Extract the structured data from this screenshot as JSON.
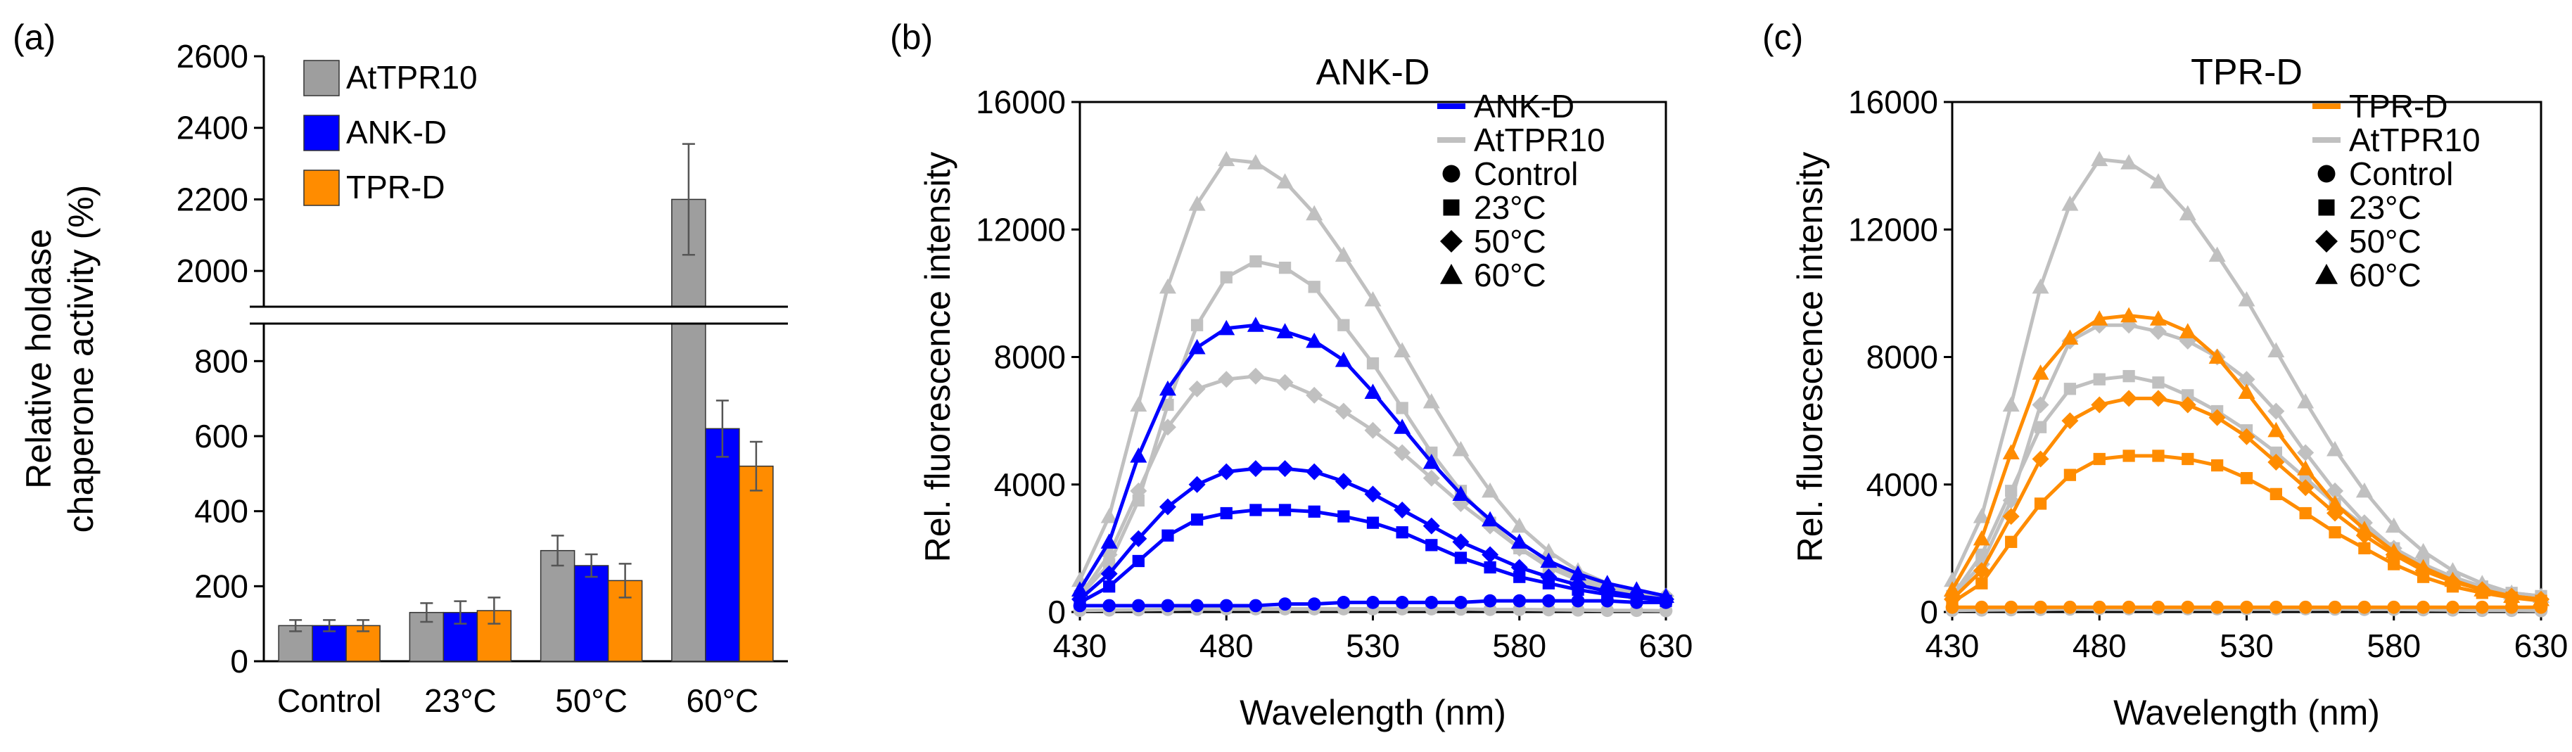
{
  "chart_data": [
    {
      "panel_label": "(a)",
      "type": "bar",
      "title": "",
      "xlabel": "",
      "ylabel_lines": [
        "Relative holdase",
        "chaperone activity (%)"
      ],
      "categories": [
        "Control",
        "23°C",
        "50°C",
        "60°C"
      ],
      "axis_break": {
        "lower_range": [
          0,
          900
        ],
        "upper_range": [
          1900,
          2600
        ]
      },
      "ylim": [
        0,
        2600
      ],
      "yticks": [
        0,
        200,
        400,
        600,
        800,
        2000,
        2200,
        2400,
        2600
      ],
      "ytick_labels": [
        "0",
        "200",
        "400",
        "600",
        "800",
        "2000",
        "2200",
        "2400",
        "2600"
      ],
      "legend_position": "top-left",
      "series": [
        {
          "name": "AtTPR10",
          "color": "#9e9e9e",
          "values": [
            95,
            130,
            295,
            2200
          ],
          "errors": [
            15,
            25,
            40,
            155
          ]
        },
        {
          "name": "ANK-D",
          "color": "#0000ff",
          "values": [
            95,
            130,
            255,
            620
          ],
          "errors": [
            15,
            30,
            30,
            75
          ]
        },
        {
          "name": "TPR-D",
          "color": "#ff8c00",
          "values": [
            95,
            135,
            215,
            520
          ],
          "errors": [
            15,
            35,
            45,
            65
          ]
        }
      ]
    },
    {
      "panel_label": "(b)",
      "type": "line",
      "title": "ANK-D",
      "xlabel": "Wavelength (nm)",
      "ylabel": "Rel. fluorescence intensity",
      "xlim": [
        430,
        630
      ],
      "ylim": [
        0,
        16000
      ],
      "xticks": [
        430,
        480,
        530,
        580,
        630
      ],
      "yticks": [
        0,
        4000,
        8000,
        12000,
        16000
      ],
      "ytick_labels": [
        "0",
        "4000",
        "8000",
        "12000",
        "16000"
      ],
      "x": [
        430,
        440,
        450,
        460,
        470,
        480,
        490,
        500,
        510,
        520,
        530,
        540,
        550,
        560,
        570,
        580,
        590,
        600,
        610,
        620,
        630
      ],
      "legend_position": "top-right",
      "legend": [
        {
          "label": "ANK-D",
          "kind": "line",
          "color": "#0000ff"
        },
        {
          "label": "AtTPR10",
          "kind": "line",
          "color": "#c0c0c0"
        },
        {
          "label": "Control",
          "kind": "marker",
          "marker": "circle"
        },
        {
          "label": "23°C",
          "kind": "marker",
          "marker": "square"
        },
        {
          "label": "50°C",
          "kind": "marker",
          "marker": "diamond"
        },
        {
          "label": "60°C",
          "kind": "marker",
          "marker": "triangle"
        }
      ],
      "series": [
        {
          "name": "AtTPR10 Control",
          "color": "#c0c0c0",
          "marker": "circle",
          "values": [
            50,
            60,
            70,
            80,
            90,
            100,
            100,
            100,
            100,
            100,
            100,
            100,
            100,
            90,
            80,
            80,
            70,
            60,
            50,
            50,
            40
          ]
        },
        {
          "name": "AtTPR10 23°C",
          "color": "#c0c0c0",
          "marker": "square",
          "values": [
            500,
            1500,
            3500,
            6500,
            9000,
            10500,
            11000,
            10800,
            10200,
            9000,
            7800,
            6400,
            5000,
            3800,
            2800,
            2000,
            1400,
            1000,
            700,
            500,
            400
          ]
        },
        {
          "name": "AtTPR10 50°C",
          "color": "#c0c0c0",
          "marker": "diamond",
          "values": [
            500,
            1800,
            3800,
            5800,
            7000,
            7300,
            7400,
            7200,
            6800,
            6300,
            5700,
            5000,
            4200,
            3400,
            2700,
            2000,
            1500,
            1100,
            800,
            600,
            500
          ]
        },
        {
          "name": "AtTPR10 60°C",
          "color": "#c0c0c0",
          "marker": "triangle",
          "values": [
            1000,
            3000,
            6500,
            10200,
            12800,
            14200,
            14100,
            13500,
            12500,
            11200,
            9800,
            8200,
            6600,
            5100,
            3800,
            2700,
            1900,
            1300,
            900,
            600,
            500
          ]
        },
        {
          "name": "ANK-D Control",
          "color": "#0000ff",
          "marker": "circle",
          "values": [
            200,
            200,
            200,
            200,
            200,
            200,
            200,
            250,
            250,
            300,
            300,
            300,
            300,
            300,
            350,
            350,
            350,
            350,
            350,
            300,
            300
          ]
        },
        {
          "name": "ANK-D 23°C",
          "color": "#0000ff",
          "marker": "square",
          "values": [
            300,
            800,
            1600,
            2400,
            2900,
            3100,
            3200,
            3200,
            3150,
            3000,
            2800,
            2500,
            2100,
            1700,
            1400,
            1100,
            900,
            700,
            550,
            450,
            350
          ]
        },
        {
          "name": "ANK-D 50°C",
          "color": "#0000ff",
          "marker": "diamond",
          "values": [
            400,
            1200,
            2300,
            3300,
            4000,
            4400,
            4500,
            4500,
            4400,
            4100,
            3700,
            3200,
            2700,
            2200,
            1800,
            1400,
            1100,
            850,
            650,
            500,
            400
          ]
        },
        {
          "name": "ANK-D 60°C",
          "color": "#0000ff",
          "marker": "triangle",
          "values": [
            700,
            2200,
            4900,
            7000,
            8300,
            8900,
            9000,
            8800,
            8500,
            7900,
            6900,
            5800,
            4700,
            3700,
            2900,
            2200,
            1600,
            1200,
            900,
            700,
            500
          ]
        }
      ]
    },
    {
      "panel_label": "(c)",
      "type": "line",
      "title": "TPR-D",
      "xlabel": "Wavelength (nm)",
      "ylabel": "Rel. fluorescence intensity",
      "xlim": [
        430,
        630
      ],
      "ylim": [
        0,
        16000
      ],
      "xticks": [
        430,
        480,
        530,
        580,
        630
      ],
      "yticks": [
        0,
        4000,
        8000,
        12000,
        16000
      ],
      "ytick_labels": [
        "0",
        "4000",
        "8000",
        "12000",
        "16000"
      ],
      "x": [
        430,
        440,
        450,
        460,
        470,
        480,
        490,
        500,
        510,
        520,
        530,
        540,
        550,
        560,
        570,
        580,
        590,
        600,
        610,
        620,
        630
      ],
      "legend_position": "top-right",
      "legend": [
        {
          "label": "TPR-D",
          "kind": "line",
          "color": "#ff8c00"
        },
        {
          "label": "AtTPR10",
          "kind": "line",
          "color": "#c0c0c0"
        },
        {
          "label": "Control",
          "kind": "marker",
          "marker": "circle"
        },
        {
          "label": "23°C",
          "kind": "marker",
          "marker": "square"
        },
        {
          "label": "50°C",
          "kind": "marker",
          "marker": "diamond"
        },
        {
          "label": "60°C",
          "kind": "marker",
          "marker": "triangle"
        }
      ],
      "series": [
        {
          "name": "AtTPR10 Control",
          "color": "#c0c0c0",
          "marker": "circle",
          "values": [
            50,
            60,
            70,
            80,
            90,
            100,
            100,
            100,
            100,
            100,
            100,
            100,
            100,
            90,
            80,
            80,
            70,
            60,
            50,
            50,
            40
          ]
        },
        {
          "name": "AtTPR10 23°C",
          "color": "#c0c0c0",
          "marker": "square",
          "values": [
            500,
            1800,
            3800,
            5800,
            7000,
            7300,
            7400,
            7200,
            6800,
            6300,
            5700,
            5000,
            4200,
            3400,
            2700,
            2000,
            1500,
            1100,
            800,
            600,
            500
          ]
        },
        {
          "name": "AtTPR10 50°C",
          "color": "#c0c0c0",
          "marker": "diamond",
          "values": [
            500,
            1500,
            3500,
            6500,
            8500,
            9000,
            9000,
            8800,
            8500,
            8000,
            7300,
            6300,
            5000,
            3800,
            2800,
            2000,
            1400,
            1000,
            700,
            500,
            400
          ]
        },
        {
          "name": "AtTPR10 60°C",
          "color": "#c0c0c0",
          "marker": "triangle",
          "values": [
            1000,
            3000,
            6500,
            10200,
            12800,
            14200,
            14100,
            13500,
            12500,
            11200,
            9800,
            8200,
            6600,
            5100,
            3800,
            2700,
            1900,
            1300,
            900,
            600,
            500
          ]
        },
        {
          "name": "TPR-D Control",
          "color": "#ff8c00",
          "marker": "circle",
          "values": [
            150,
            150,
            150,
            150,
            150,
            150,
            150,
            150,
            150,
            150,
            150,
            150,
            150,
            150,
            150,
            150,
            150,
            150,
            150,
            150,
            150
          ]
        },
        {
          "name": "TPR-D 23°C",
          "color": "#ff8c00",
          "marker": "square",
          "values": [
            300,
            900,
            2200,
            3400,
            4300,
            4800,
            4900,
            4900,
            4800,
            4600,
            4200,
            3700,
            3100,
            2500,
            2000,
            1500,
            1100,
            800,
            600,
            450,
            350
          ]
        },
        {
          "name": "TPR-D 50°C",
          "color": "#ff8c00",
          "marker": "diamond",
          "values": [
            400,
            1300,
            3000,
            4800,
            6000,
            6500,
            6700,
            6700,
            6500,
            6100,
            5500,
            4700,
            3900,
            3100,
            2400,
            1800,
            1300,
            950,
            700,
            500,
            400
          ]
        },
        {
          "name": "TPR-D 60°C",
          "color": "#ff8c00",
          "marker": "triangle",
          "values": [
            700,
            2300,
            5000,
            7500,
            8600,
            9200,
            9300,
            9200,
            8800,
            8000,
            6900,
            5700,
            4500,
            3400,
            2600,
            1900,
            1400,
            1000,
            700,
            500,
            400
          ]
        }
      ]
    }
  ]
}
